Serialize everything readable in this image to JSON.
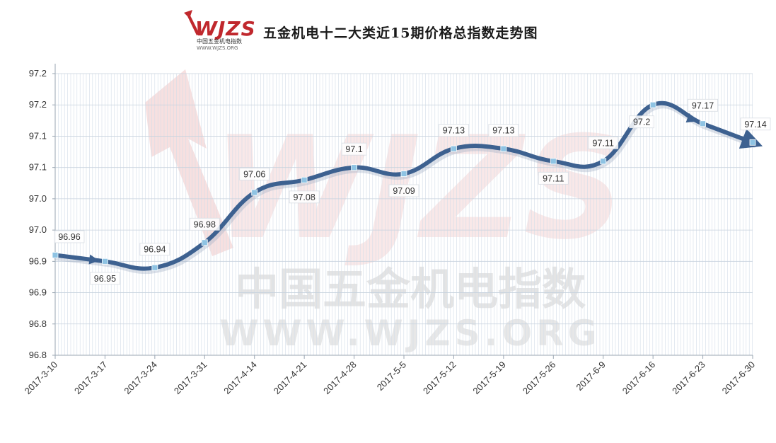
{
  "header": {
    "logo_text": "WJZS",
    "logo_cn": "中国五金机电指数",
    "logo_url": "WWW.WJZS.ORG",
    "title": "五金机电十二大类近15期价格总指数走势图"
  },
  "watermark": {
    "cn": "中国五金机电指数",
    "en": "WWW.WJZS.ORG"
  },
  "colors": {
    "line": "#3d6190",
    "marker": "#8ec3e3",
    "grid": "#d3dde8",
    "watermark": "#e9a5a5"
  },
  "chart_data": {
    "type": "line",
    "title": "五金机电十二大类近15期价格总指数走势图",
    "xlabel": "",
    "ylabel": "",
    "categories": [
      "2017-3-10",
      "2017-3-17",
      "2017-3-24",
      "2017-3-31",
      "2017-4-14",
      "2017-4-21",
      "2017-4-28",
      "2017-5-5",
      "2017-5-12",
      "2017-5-19",
      "2017-5-26",
      "2017-6-9",
      "2017-6-16",
      "2017-6-23",
      "2017-6-30"
    ],
    "series": [
      {
        "values": [
          96.96,
          96.95,
          96.94,
          96.98,
          97.06,
          97.08,
          97.1,
          97.09,
          97.13,
          97.13,
          97.11,
          97.11,
          97.2,
          97.17,
          97.14
        ]
      }
    ],
    "data_labels": [
      "96.96",
      "96.95",
      "96.94",
      "96.98",
      "97.06",
      "97.08",
      "97.1",
      "97.09",
      "97.13",
      "97.13",
      "97.11",
      "97.11",
      "97.2",
      "97.17",
      "97.14"
    ],
    "ylim": [
      96.8,
      97.25
    ],
    "yticks": [
      96.8,
      96.85,
      96.9,
      96.95,
      97.0,
      97.05,
      97.1,
      97.15,
      97.2,
      97.25
    ],
    "ytick_labels": [
      "96.8",
      "96.8",
      "96.9",
      "96.9",
      "97.0",
      "97.0",
      "97.1",
      "97.1",
      "97.2",
      "97.2"
    ],
    "grid": true,
    "legend": "none"
  }
}
